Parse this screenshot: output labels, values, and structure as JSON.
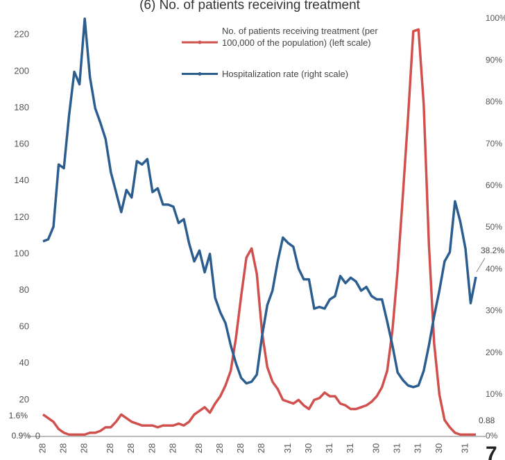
{
  "chart_data": {
    "type": "line",
    "title": "(6) No. of patients receiving treatment",
    "categories": [
      "28",
      null,
      null,
      null,
      "28",
      null,
      null,
      null,
      "28",
      null,
      null,
      null,
      null,
      "28",
      null,
      null,
      null,
      "28",
      null,
      null,
      null,
      "28",
      null,
      null,
      null,
      "28",
      null,
      null,
      null,
      null,
      "28",
      null,
      null,
      null,
      "28",
      null,
      null,
      null,
      "28",
      null,
      null,
      null,
      "28",
      null,
      null,
      null,
      null,
      "31",
      null,
      null,
      null,
      "30",
      null,
      null,
      null,
      "31",
      null,
      null,
      null,
      "31",
      null,
      null,
      null,
      null,
      "30",
      null,
      null,
      null,
      "31",
      null,
      null,
      null,
      "31",
      null,
      null,
      null,
      "30",
      null,
      null,
      null,
      null,
      "31",
      null,
      null
    ],
    "series": [
      {
        "name": "No. of patients receiving treatment (per 100,000 of the population) (left scale)",
        "color": "#d0504d",
        "axis": "y",
        "values": [
          12,
          10,
          8,
          4,
          2,
          1,
          1,
          1,
          1,
          2,
          2,
          3,
          5,
          5,
          8,
          12,
          10,
          8,
          7,
          6,
          6,
          6,
          5,
          6,
          6,
          6,
          7,
          6,
          8,
          12,
          14,
          16,
          13,
          18,
          22,
          28,
          36,
          54,
          77,
          98,
          103,
          89,
          57,
          38,
          30,
          26,
          20,
          19,
          18,
          20,
          17,
          15,
          20,
          21,
          24,
          22,
          22,
          18,
          17,
          15,
          15,
          16,
          17,
          19,
          22,
          27,
          36,
          58,
          91,
          132,
          175,
          222,
          223,
          182,
          105,
          51,
          23,
          9,
          5,
          2,
          1,
          1,
          1,
          1
        ]
      },
      {
        "name": "Hospitalization rate (right scale)",
        "color": "#2b5d8f",
        "axis": "y2",
        "values": [
          46.7,
          47.2,
          50.2,
          65.1,
          64.2,
          76.9,
          87.3,
          84.3,
          100,
          86,
          78.6,
          75.1,
          71.2,
          63.3,
          58.5,
          53.7,
          59,
          57.2,
          65.9,
          65.1,
          66.4,
          58.5,
          59.4,
          55.5,
          55.5,
          55,
          51.1,
          52,
          46.3,
          41.9,
          44.5,
          39.3,
          43.7,
          33.2,
          29.7,
          27.1,
          21.8,
          17.5,
          14,
          12.7,
          13.1,
          14.8,
          24,
          31.4,
          34.9,
          41.9,
          47.6,
          46.3,
          45.4,
          40.2,
          37.6,
          37.6,
          30.6,
          31,
          30.6,
          32.8,
          33.6,
          38.4,
          36.7,
          38,
          37.1,
          34.9,
          35.8,
          33.6,
          32.8,
          32.8,
          27.5,
          21.8,
          15.3,
          13.5,
          12.2,
          11.8,
          12.2,
          15.7,
          21.8,
          28.8,
          34.9,
          41.9,
          44.1,
          56.3,
          51.5,
          45,
          31.9,
          38.2
        ]
      }
    ],
    "ylim": [
      0,
      230
    ],
    "yticks": [
      0,
      20,
      40,
      60,
      80,
      100,
      120,
      140,
      160,
      180,
      200,
      220
    ],
    "y2lim": [
      0,
      100
    ],
    "y2ticks": [
      {
        "value": 0,
        "label": "0%"
      },
      {
        "value": 10,
        "label": "10%"
      },
      {
        "value": 20,
        "label": "20%"
      },
      {
        "value": 30,
        "label": "30%"
      },
      {
        "value": 40,
        "label": "40%"
      },
      {
        "value": 50,
        "label": "50%"
      },
      {
        "value": 60,
        "label": "60%"
      },
      {
        "value": 70,
        "label": "70%"
      },
      {
        "value": 80,
        "label": "80%"
      },
      {
        "value": 90,
        "label": "90%"
      },
      {
        "value": 100,
        "label": "100%"
      }
    ],
    "grid": false,
    "legend": "upper center",
    "annotations": [
      "38.2%",
      "0.88",
      "1.6%",
      "0.9%",
      "7"
    ]
  }
}
